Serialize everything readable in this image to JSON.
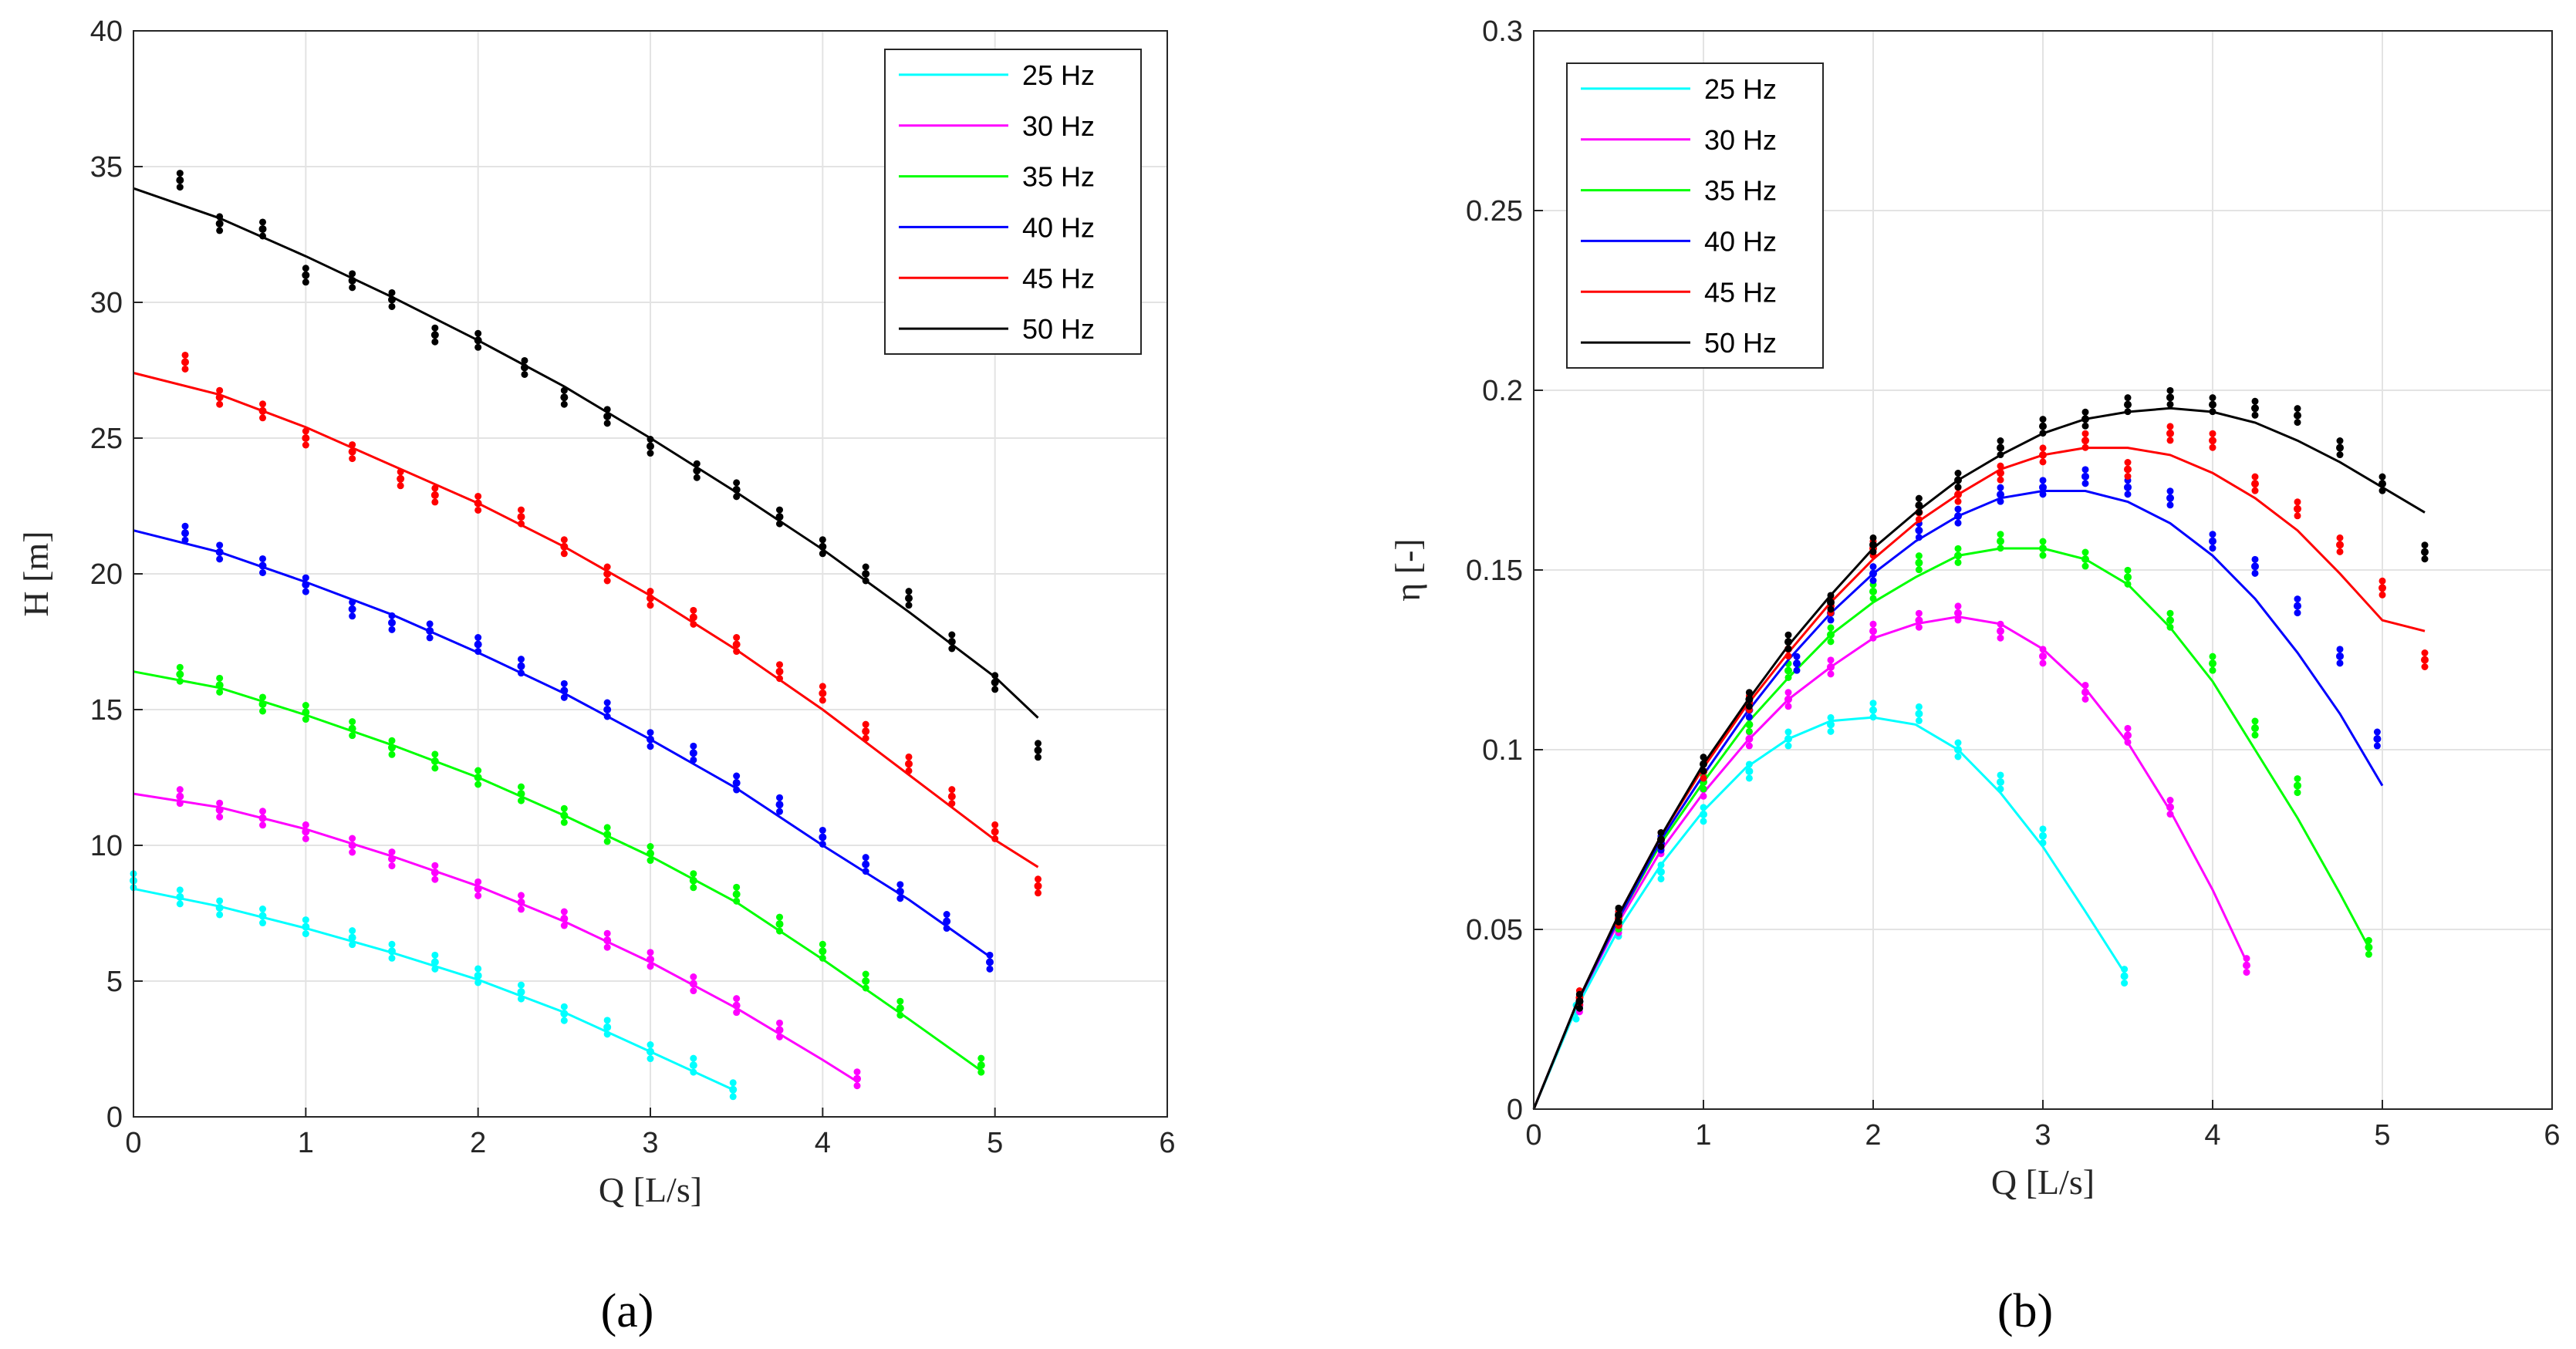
{
  "chart_data": [
    {
      "type": "line",
      "panel_caption": "(a)",
      "xlabel": "Q [L/s]",
      "ylabel": "H [m]",
      "xlim": [
        0,
        6
      ],
      "ylim": [
        0,
        40
      ],
      "xticks": [
        "0",
        "1",
        "2",
        "3",
        "4",
        "5",
        "6"
      ],
      "yticks": [
        "0",
        "5",
        "10",
        "15",
        "20",
        "25",
        "30",
        "35",
        "40"
      ],
      "grid": true,
      "legend_position": "top-right",
      "series": [
        {
          "name": "25 Hz",
          "color": "#00ffff",
          "curve_x": [
            0,
            0.5,
            1,
            1.5,
            2,
            2.5,
            3,
            3.48
          ],
          "curve_y": [
            8.4,
            7.75,
            6.95,
            6.05,
            5.05,
            3.85,
            2.4,
            1.0
          ],
          "points_x": [
            0,
            0.27,
            0.5,
            0.75,
            1.0,
            1.27,
            1.5,
            1.75,
            2.0,
            2.25,
            2.5,
            2.75,
            3.0,
            3.25,
            3.48
          ],
          "points_y": [
            8.7,
            8.1,
            7.7,
            7.4,
            7.0,
            6.6,
            6.1,
            5.7,
            5.2,
            4.6,
            3.8,
            3.3,
            2.4,
            1.9,
            1.0
          ]
        },
        {
          "name": "30 Hz",
          "color": "#ff00ff",
          "curve_x": [
            0,
            0.5,
            1,
            1.5,
            2,
            2.5,
            3,
            3.5,
            4,
            4.2
          ],
          "curve_y": [
            11.9,
            11.4,
            10.6,
            9.6,
            8.5,
            7.2,
            5.7,
            4.0,
            2.1,
            1.3
          ],
          "points_x": [
            0.27,
            0.5,
            0.75,
            1.0,
            1.27,
            1.5,
            1.75,
            2.0,
            2.25,
            2.5,
            2.75,
            3.0,
            3.25,
            3.5,
            3.75,
            4.2
          ],
          "points_y": [
            11.8,
            11.3,
            11.0,
            10.5,
            10.0,
            9.5,
            9.0,
            8.4,
            7.9,
            7.3,
            6.5,
            5.8,
            4.9,
            4.1,
            3.2,
            1.4
          ]
        },
        {
          "name": "35 Hz",
          "color": "#00ff00",
          "curve_x": [
            0,
            0.5,
            1,
            1.5,
            2,
            2.5,
            3,
            3.5,
            4,
            4.5,
            4.92
          ],
          "curve_y": [
            16.4,
            15.8,
            14.8,
            13.7,
            12.5,
            11.1,
            9.6,
            7.9,
            5.8,
            3.6,
            1.7
          ],
          "points_x": [
            0.27,
            0.5,
            0.75,
            1.0,
            1.27,
            1.5,
            1.75,
            2.0,
            2.25,
            2.5,
            2.75,
            3.0,
            3.25,
            3.5,
            3.75,
            4.0,
            4.25,
            4.45,
            4.92
          ],
          "points_y": [
            16.3,
            15.9,
            15.2,
            14.9,
            14.3,
            13.6,
            13.1,
            12.5,
            11.9,
            11.1,
            10.4,
            9.7,
            8.7,
            8.2,
            7.1,
            6.1,
            5.0,
            4.0,
            1.9
          ]
        },
        {
          "name": "40 Hz",
          "color": "#0000ff",
          "curve_x": [
            0,
            0.5,
            1,
            1.5,
            2,
            2.5,
            3,
            3.5,
            4,
            4.5,
            4.97
          ],
          "curve_y": [
            21.6,
            20.8,
            19.7,
            18.5,
            17.1,
            15.6,
            13.9,
            12.1,
            10.0,
            8.0,
            5.9
          ],
          "points_x": [
            0.3,
            0.5,
            0.75,
            1.0,
            1.27,
            1.5,
            1.72,
            2.0,
            2.25,
            2.5,
            2.75,
            3.0,
            3.25,
            3.5,
            3.75,
            4.0,
            4.25,
            4.45,
            4.72,
            4.97
          ],
          "points_y": [
            21.5,
            20.8,
            20.3,
            19.6,
            18.7,
            18.2,
            17.9,
            17.4,
            16.6,
            15.7,
            15.0,
            13.9,
            13.4,
            12.3,
            11.5,
            10.3,
            9.3,
            8.3,
            7.2,
            5.7
          ]
        },
        {
          "name": "45 Hz",
          "color": "#ff0000",
          "curve_x": [
            0,
            0.5,
            1,
            1.5,
            2,
            2.5,
            3,
            3.5,
            4,
            4.5,
            5,
            5.25
          ],
          "curve_y": [
            27.4,
            26.6,
            25.4,
            24.0,
            22.6,
            21.0,
            19.2,
            17.2,
            15.0,
            12.6,
            10.2,
            9.2
          ],
          "points_x": [
            0.3,
            0.5,
            0.75,
            1.0,
            1.27,
            1.55,
            1.75,
            2.0,
            2.25,
            2.5,
            2.75,
            3.0,
            3.25,
            3.5,
            3.75,
            4.0,
            4.25,
            4.5,
            4.75,
            5.0,
            5.25
          ],
          "points_y": [
            27.8,
            26.5,
            26.0,
            25.0,
            24.5,
            23.5,
            22.9,
            22.6,
            22.1,
            21.0,
            20.0,
            19.1,
            18.4,
            17.4,
            16.4,
            15.6,
            14.2,
            13.0,
            11.8,
            10.5,
            8.5
          ]
        },
        {
          "name": "50 Hz",
          "color": "#000000",
          "curve_x": [
            0,
            0.5,
            1,
            1.5,
            2,
            2.5,
            3,
            3.5,
            4,
            4.5,
            5,
            5.25
          ],
          "curve_y": [
            34.2,
            33.1,
            31.7,
            30.2,
            28.6,
            26.9,
            25.0,
            23.0,
            20.9,
            18.6,
            16.2,
            14.7
          ],
          "points_x": [
            0.27,
            0.5,
            0.75,
            1.0,
            1.27,
            1.5,
            1.75,
            2.0,
            2.27,
            2.5,
            2.75,
            3.0,
            3.27,
            3.5,
            3.75,
            4.0,
            4.25,
            4.5,
            4.75,
            5.0,
            5.25
          ],
          "points_y": [
            34.5,
            32.9,
            32.7,
            31.0,
            30.8,
            30.1,
            28.8,
            28.6,
            27.6,
            26.5,
            25.8,
            24.7,
            23.8,
            23.1,
            22.1,
            21.0,
            20.0,
            19.1,
            17.5,
            16.0,
            13.5
          ]
        }
      ]
    },
    {
      "type": "line",
      "panel_caption": "(b)",
      "xlabel": "Q [L/s]",
      "ylabel": "η [-]",
      "xlim": [
        0,
        6
      ],
      "ylim": [
        0,
        0.3
      ],
      "xticks": [
        "0",
        "1",
        "2",
        "3",
        "4",
        "5",
        "6"
      ],
      "yticks": [
        "0",
        "0.05",
        "0.1",
        "0.15",
        "0.2",
        "0.25",
        "0.3"
      ],
      "grid": true,
      "legend_position": "top-left",
      "series": [
        {
          "name": "25 Hz",
          "color": "#00ffff",
          "curve_x": [
            0,
            0.25,
            0.5,
            0.75,
            1,
            1.25,
            1.5,
            1.75,
            2,
            2.25,
            2.5,
            2.75,
            3,
            3.25,
            3.48
          ],
          "curve_y": [
            0,
            0.028,
            0.05,
            0.068,
            0.083,
            0.095,
            0.103,
            0.108,
            0.109,
            0.107,
            0.1,
            0.088,
            0.073,
            0.055,
            0.038
          ],
          "points_x": [
            0.25,
            0.5,
            0.75,
            1.0,
            1.27,
            1.5,
            1.75,
            2.0,
            2.27,
            2.5,
            2.75,
            3.0,
            3.48
          ],
          "points_y": [
            0.027,
            0.05,
            0.066,
            0.082,
            0.094,
            0.103,
            0.107,
            0.111,
            0.11,
            0.1,
            0.091,
            0.076,
            0.037
          ]
        },
        {
          "name": "30 Hz",
          "color": "#ff00ff",
          "curve_x": [
            0,
            0.25,
            0.5,
            0.75,
            1,
            1.25,
            1.5,
            1.75,
            2,
            2.25,
            2.5,
            2.75,
            3,
            3.25,
            3.5,
            3.75,
            4,
            4.2
          ],
          "curve_y": [
            0,
            0.029,
            0.052,
            0.072,
            0.088,
            0.102,
            0.114,
            0.123,
            0.131,
            0.135,
            0.137,
            0.135,
            0.128,
            0.117,
            0.102,
            0.083,
            0.061,
            0.041
          ],
          "points_x": [
            0.27,
            0.5,
            0.75,
            1.0,
            1.27,
            1.5,
            1.75,
            2.0,
            2.27,
            2.5,
            2.75,
            3.0,
            3.25,
            3.5,
            3.75,
            4.2
          ],
          "points_y": [
            0.029,
            0.051,
            0.073,
            0.089,
            0.103,
            0.114,
            0.123,
            0.133,
            0.136,
            0.138,
            0.133,
            0.126,
            0.116,
            0.104,
            0.084,
            0.04
          ]
        },
        {
          "name": "35 Hz",
          "color": "#00ff00",
          "curve_x": [
            0,
            0.25,
            0.5,
            0.75,
            1,
            1.25,
            1.5,
            1.75,
            2,
            2.25,
            2.5,
            2.75,
            3,
            3.25,
            3.5,
            3.75,
            4,
            4.25,
            4.5,
            4.75,
            4.92
          ],
          "curve_y": [
            0,
            0.029,
            0.053,
            0.074,
            0.091,
            0.107,
            0.12,
            0.132,
            0.141,
            0.148,
            0.154,
            0.156,
            0.156,
            0.153,
            0.146,
            0.134,
            0.119,
            0.1,
            0.081,
            0.06,
            0.045
          ],
          "points_x": [
            0.27,
            0.5,
            0.75,
            1.0,
            1.27,
            1.5,
            1.75,
            2.0,
            2.27,
            2.5,
            2.75,
            3.0,
            3.25,
            3.5,
            3.75,
            4.0,
            4.25,
            4.5,
            4.92
          ],
          "points_y": [
            0.03,
            0.052,
            0.074,
            0.091,
            0.107,
            0.122,
            0.132,
            0.144,
            0.152,
            0.154,
            0.158,
            0.156,
            0.153,
            0.148,
            0.136,
            0.124,
            0.106,
            0.09,
            0.045
          ]
        },
        {
          "name": "40 Hz",
          "color": "#0000ff",
          "curve_x": [
            0,
            0.25,
            0.5,
            0.75,
            1,
            1.25,
            1.5,
            1.75,
            2,
            2.25,
            2.5,
            2.75,
            3,
            3.25,
            3.5,
            3.75,
            4,
            4.25,
            4.5,
            4.75,
            5
          ],
          "curve_y": [
            0,
            0.029,
            0.053,
            0.075,
            0.093,
            0.11,
            0.125,
            0.138,
            0.149,
            0.158,
            0.165,
            0.17,
            0.172,
            0.172,
            0.169,
            0.163,
            0.154,
            0.142,
            0.127,
            0.11,
            0.09
          ],
          "points_x": [
            0.27,
            0.5,
            0.75,
            1.0,
            1.27,
            1.55,
            1.75,
            2.0,
            2.27,
            2.5,
            2.75,
            3.0,
            3.25,
            3.5,
            3.75,
            4.0,
            4.25,
            4.5,
            4.75,
            4.97
          ],
          "points_y": [
            0.03,
            0.053,
            0.074,
            0.094,
            0.111,
            0.124,
            0.138,
            0.149,
            0.161,
            0.165,
            0.171,
            0.173,
            0.176,
            0.173,
            0.17,
            0.158,
            0.151,
            0.14,
            0.126,
            0.103
          ]
        },
        {
          "name": "45 Hz",
          "color": "#ff0000",
          "curve_x": [
            0,
            0.25,
            0.5,
            0.75,
            1,
            1.25,
            1.5,
            1.75,
            2,
            2.25,
            2.5,
            2.75,
            3,
            3.25,
            3.5,
            3.75,
            4,
            4.25,
            4.5,
            4.75,
            5,
            5.25
          ],
          "curve_y": [
            0,
            0.029,
            0.054,
            0.076,
            0.095,
            0.112,
            0.127,
            0.141,
            0.153,
            0.163,
            0.171,
            0.178,
            0.182,
            0.184,
            0.184,
            0.182,
            0.177,
            0.17,
            0.161,
            0.149,
            0.136,
            0.133
          ],
          "points_x": [
            0.27,
            0.5,
            0.75,
            1.0,
            1.27,
            1.5,
            1.75,
            2.0,
            2.27,
            2.5,
            2.75,
            3.0,
            3.25,
            3.5,
            3.75,
            4.0,
            4.25,
            4.5,
            4.75,
            5.0,
            5.25
          ],
          "points_y": [
            0.031,
            0.053,
            0.075,
            0.094,
            0.113,
            0.128,
            0.14,
            0.156,
            0.166,
            0.171,
            0.177,
            0.182,
            0.186,
            0.178,
            0.188,
            0.186,
            0.174,
            0.167,
            0.157,
            0.145,
            0.125
          ]
        },
        {
          "name": "50 Hz",
          "color": "#000000",
          "curve_x": [
            0,
            0.25,
            0.5,
            0.75,
            1,
            1.25,
            1.5,
            1.75,
            2,
            2.25,
            2.5,
            2.75,
            3,
            3.25,
            3.5,
            3.75,
            4,
            4.25,
            4.5,
            4.75,
            5,
            5.25
          ],
          "curve_y": [
            0,
            0.029,
            0.054,
            0.076,
            0.096,
            0.113,
            0.129,
            0.143,
            0.156,
            0.166,
            0.175,
            0.182,
            0.188,
            0.192,
            0.194,
            0.195,
            0.194,
            0.191,
            0.186,
            0.18,
            0.173,
            0.166
          ],
          "points_x": [
            0.27,
            0.5,
            0.75,
            1.0,
            1.27,
            1.5,
            1.75,
            2.0,
            2.27,
            2.5,
            2.75,
            3.0,
            3.25,
            3.5,
            3.75,
            4.0,
            4.25,
            4.5,
            4.75,
            5.0,
            5.25
          ],
          "points_y": [
            0.03,
            0.054,
            0.075,
            0.096,
            0.114,
            0.13,
            0.141,
            0.157,
            0.168,
            0.175,
            0.184,
            0.19,
            0.192,
            0.196,
            0.198,
            0.196,
            0.195,
            0.193,
            0.184,
            0.174,
            0.155
          ]
        }
      ]
    }
  ]
}
